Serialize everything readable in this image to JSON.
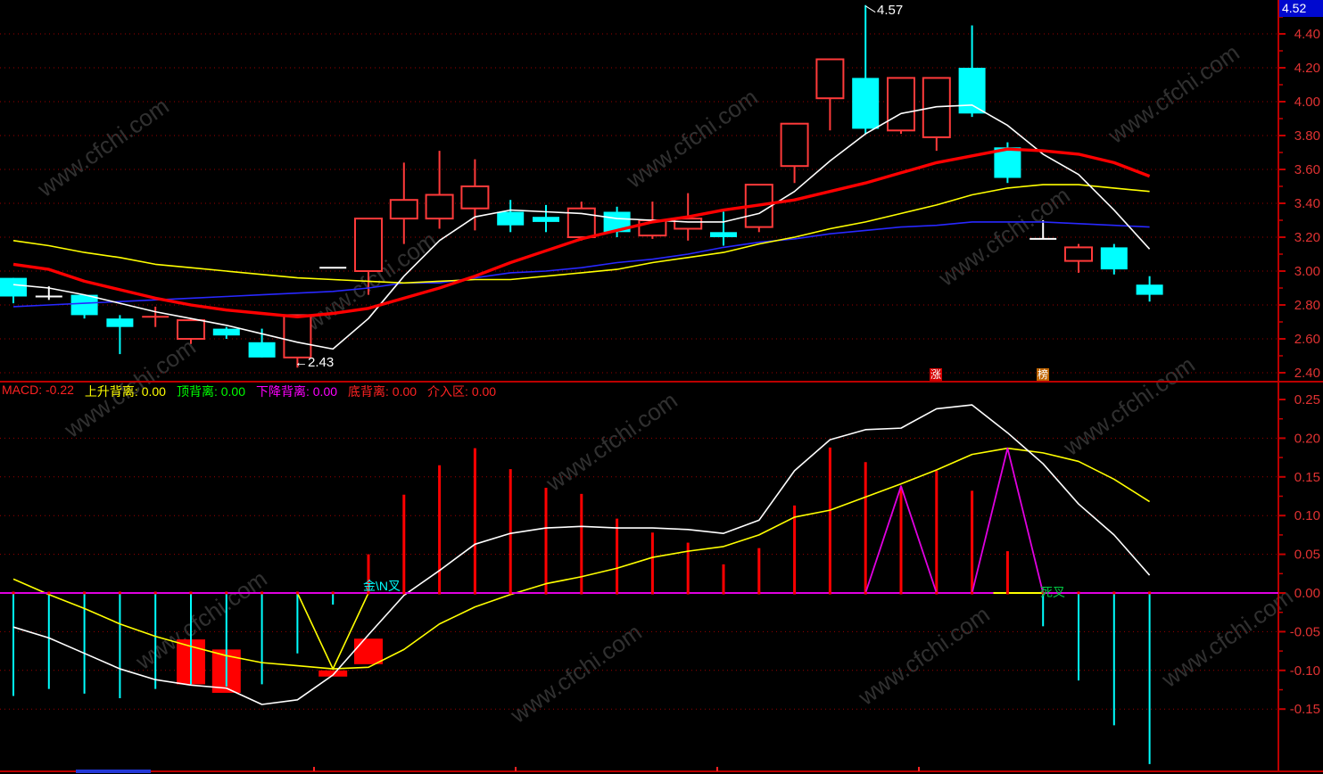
{
  "app": {
    "watermark_text": "www.cfchi.com"
  },
  "price_axis": {
    "badge": "4.52",
    "labels": [
      "4.40",
      "4.20",
      "4.00",
      "3.80",
      "3.60",
      "3.40",
      "3.20",
      "3.00",
      "2.80",
      "2.60",
      "2.40"
    ],
    "label_color": "#e03232"
  },
  "macd_axis": {
    "labels": [
      "0.25",
      "0.20",
      "0.15",
      "0.10",
      "0.05",
      "0.00",
      "-0.05",
      "-0.10",
      "-0.15"
    ],
    "label_color": "#e03232"
  },
  "info_row": {
    "items": [
      {
        "text": "MACD: -0.22",
        "color": "#ff2222"
      },
      {
        "text": "上升背离: 0.00",
        "color": "#ffff00"
      },
      {
        "text": "顶背离: 0.00",
        "color": "#00ff00"
      },
      {
        "text": "下降背离: 0.00",
        "color": "#ff00ff"
      },
      {
        "text": "底背离: 0.00",
        "color": "#ff2222"
      },
      {
        "text": "介入区: 0.00",
        "color": "#ff2222"
      }
    ]
  },
  "annotations": {
    "high_label": "4.57",
    "low_label": "←2.43",
    "rise_tag": "涨",
    "rank_tag": "榜",
    "golden_cross": "金\\N叉",
    "death_cross": "死叉"
  },
  "colors": {
    "up_candle": "#ff3a3a",
    "down_candle": "#00ffff",
    "flat_candle": "#ffffff",
    "ma_white": "#ffffff",
    "ma_yellow": "#ffff00",
    "ma_blue": "#2828ff",
    "ma_red": "#ff0000",
    "hist_pos": "#ff0000",
    "hist_neg": "#00ffff",
    "signal_magenta": "#e000e0",
    "grid": "#9c0000",
    "axis": "#c80000",
    "entry_block": "#ff0000"
  },
  "chart_data": [
    {
      "type": "candlestick",
      "title": "",
      "xlabel": "",
      "ylabel": "price",
      "ylim": [
        2.35,
        4.6
      ],
      "yticks": [
        4.4,
        4.2,
        4.0,
        3.8,
        3.6,
        3.4,
        3.2,
        3.0,
        2.8,
        2.6,
        2.4
      ],
      "grid": "dotted",
      "high_annotation": {
        "index": 24,
        "price": 4.57
      },
      "low_annotation": {
        "index": 8,
        "price": 2.43
      },
      "candles_format": [
        "open",
        "high",
        "low",
        "close",
        "kind(u=red-hollow,d=cyan-filled,w=white-doji)"
      ],
      "candles": [
        [
          2.96,
          2.96,
          2.81,
          2.85,
          "d"
        ],
        [
          2.85,
          2.91,
          2.83,
          2.85,
          "w"
        ],
        [
          2.86,
          2.86,
          2.72,
          2.74,
          "d"
        ],
        [
          2.72,
          2.74,
          2.51,
          2.67,
          "d"
        ],
        [
          2.73,
          2.79,
          2.67,
          2.73,
          "u"
        ],
        [
          2.6,
          2.72,
          2.57,
          2.71,
          "u"
        ],
        [
          2.66,
          2.67,
          2.6,
          2.62,
          "d"
        ],
        [
          2.58,
          2.66,
          2.49,
          2.49,
          "d"
        ],
        [
          2.49,
          2.74,
          2.43,
          2.74,
          "u"
        ],
        [
          3.02,
          3.02,
          3.02,
          3.02,
          "w"
        ],
        [
          3.0,
          3.31,
          2.86,
          3.31,
          "u"
        ],
        [
          3.31,
          3.64,
          3.16,
          3.42,
          "u"
        ],
        [
          3.31,
          3.71,
          3.25,
          3.45,
          "u"
        ],
        [
          3.37,
          3.66,
          3.24,
          3.5,
          "u"
        ],
        [
          3.35,
          3.42,
          3.23,
          3.27,
          "d"
        ],
        [
          3.32,
          3.39,
          3.23,
          3.29,
          "d"
        ],
        [
          3.2,
          3.41,
          3.18,
          3.37,
          "u"
        ],
        [
          3.35,
          3.38,
          3.2,
          3.23,
          "d"
        ],
        [
          3.21,
          3.41,
          3.19,
          3.3,
          "u"
        ],
        [
          3.25,
          3.46,
          3.18,
          3.31,
          "u"
        ],
        [
          3.23,
          3.35,
          3.15,
          3.2,
          "d"
        ],
        [
          3.26,
          3.51,
          3.23,
          3.51,
          "u"
        ],
        [
          3.62,
          3.87,
          3.52,
          3.87,
          "u"
        ],
        [
          4.02,
          4.25,
          3.83,
          4.25,
          "u"
        ],
        [
          4.14,
          4.57,
          3.81,
          3.84,
          "d"
        ],
        [
          3.83,
          4.14,
          3.81,
          4.14,
          "u"
        ],
        [
          3.79,
          4.14,
          3.71,
          4.14,
          "u"
        ],
        [
          4.2,
          4.45,
          3.91,
          3.93,
          "d"
        ],
        [
          3.73,
          3.76,
          3.52,
          3.55,
          "d"
        ],
        [
          3.19,
          3.3,
          3.19,
          3.19,
          "w"
        ],
        [
          3.06,
          3.16,
          2.99,
          3.14,
          "u"
        ],
        [
          3.14,
          3.16,
          2.98,
          3.01,
          "d"
        ],
        [
          2.92,
          2.97,
          2.82,
          2.86,
          "d"
        ]
      ],
      "series": [
        {
          "name": "MA-white",
          "color": "#ffffff",
          "width": 1.6,
          "values": [
            2.92,
            2.9,
            2.86,
            2.81,
            2.76,
            2.72,
            2.68,
            2.63,
            2.58,
            2.54,
            2.72,
            2.97,
            3.18,
            3.32,
            3.36,
            3.35,
            3.34,
            3.31,
            3.3,
            3.29,
            3.29,
            3.34,
            3.47,
            3.65,
            3.81,
            3.93,
            3.97,
            3.98,
            3.86,
            3.69,
            3.57,
            3.36,
            3.13
          ]
        },
        {
          "name": "MA-yellow",
          "color": "#ffff00",
          "width": 1.6,
          "values": [
            3.18,
            3.15,
            3.11,
            3.08,
            3.04,
            3.02,
            3.0,
            2.98,
            2.96,
            2.95,
            2.94,
            2.93,
            2.94,
            2.95,
            2.95,
            2.97,
            2.99,
            3.01,
            3.05,
            3.08,
            3.11,
            3.16,
            3.2,
            3.25,
            3.29,
            3.34,
            3.39,
            3.45,
            3.49,
            3.51,
            3.51,
            3.49,
            3.47
          ]
        },
        {
          "name": "MA-blue",
          "color": "#2828ff",
          "width": 1.6,
          "values": [
            2.79,
            2.8,
            2.81,
            2.82,
            2.83,
            2.84,
            2.85,
            2.86,
            2.87,
            2.88,
            2.9,
            2.93,
            2.93,
            2.96,
            2.99,
            3.0,
            3.02,
            3.05,
            3.07,
            3.1,
            3.14,
            3.17,
            3.19,
            3.22,
            3.24,
            3.26,
            3.27,
            3.29,
            3.29,
            3.29,
            3.28,
            3.27,
            3.26
          ]
        },
        {
          "name": "MA-red",
          "color": "#ff0000",
          "width": 3.4,
          "values": [
            3.04,
            3.01,
            2.94,
            2.89,
            2.84,
            2.8,
            2.77,
            2.75,
            2.73,
            2.75,
            2.78,
            2.84,
            2.9,
            2.97,
            3.05,
            3.12,
            3.19,
            3.24,
            3.29,
            3.32,
            3.36,
            3.39,
            3.42,
            3.47,
            3.52,
            3.58,
            3.64,
            3.68,
            3.72,
            3.71,
            3.69,
            3.64,
            3.56
          ]
        }
      ]
    },
    {
      "type": "bar",
      "title": "MACD",
      "ylim": [
        -0.23,
        0.25
      ],
      "yticks": [
        0.25,
        0.2,
        0.15,
        0.1,
        0.05,
        0.0,
        -0.05,
        -0.1,
        -0.15
      ],
      "grid": "dotted",
      "histogram": [
        -0.133,
        -0.124,
        -0.13,
        -0.136,
        -0.124,
        -0.118,
        -0.121,
        -0.118,
        -0.078,
        -0.015,
        0.05,
        0.127,
        0.165,
        0.187,
        0.16,
        0.136,
        0.128,
        0.096,
        0.078,
        0.065,
        0.037,
        0.058,
        0.113,
        0.188,
        0.169,
        0.137,
        0.158,
        0.132,
        0.054,
        -0.043,
        -0.113,
        -0.171,
        -0.221
      ],
      "series": [
        {
          "name": "DIF-white",
          "color": "#ffffff",
          "width": 1.6,
          "values": [
            -0.044,
            -0.058,
            -0.078,
            -0.098,
            -0.112,
            -0.119,
            -0.123,
            -0.144,
            -0.138,
            -0.106,
            -0.054,
            -0.003,
            0.029,
            0.063,
            0.077,
            0.084,
            0.086,
            0.084,
            0.084,
            0.082,
            0.077,
            0.094,
            0.158,
            0.198,
            0.211,
            0.213,
            0.238,
            0.243,
            0.207,
            0.167,
            0.115,
            0.075,
            0.023
          ]
        },
        {
          "name": "DEA-yellow",
          "color": "#ffff00",
          "width": 1.6,
          "values": [
            0.018,
            -0.002,
            -0.02,
            -0.04,
            -0.056,
            -0.069,
            -0.081,
            -0.09,
            -0.094,
            -0.098,
            -0.096,
            -0.073,
            -0.04,
            -0.018,
            -0.002,
            0.012,
            0.021,
            0.032,
            0.046,
            0.054,
            0.06,
            0.075,
            0.098,
            0.107,
            0.124,
            0.141,
            0.159,
            0.179,
            0.187,
            0.181,
            0.17,
            0.147,
            0.118
          ]
        },
        {
          "name": "signal-magenta",
          "color": "#e000e0",
          "width": 1.6,
          "values": [
            0,
            0,
            0,
            0,
            0,
            0,
            0,
            0,
            0,
            0,
            0,
            0,
            0,
            0,
            0,
            0,
            0,
            0,
            0,
            0,
            0,
            0,
            0,
            0,
            0,
            0.138,
            0,
            0,
            0.187,
            0,
            0,
            0,
            0
          ]
        }
      ],
      "yellow_v_overlay": [
        [
          8,
          0
        ],
        [
          9,
          -0.098
        ],
        [
          10,
          0
        ]
      ],
      "yellow_zero_segment": {
        "from_index": 27.6,
        "to_index": 29
      },
      "entry_blocks": [
        {
          "index": 5,
          "top": -0.06,
          "bottom": -0.118
        },
        {
          "index": 6,
          "top": -0.073,
          "bottom": -0.129
        },
        {
          "index": 9,
          "top": -0.1,
          "bottom": -0.108
        },
        {
          "index": 10,
          "top": -0.059,
          "bottom": -0.092
        }
      ]
    }
  ]
}
